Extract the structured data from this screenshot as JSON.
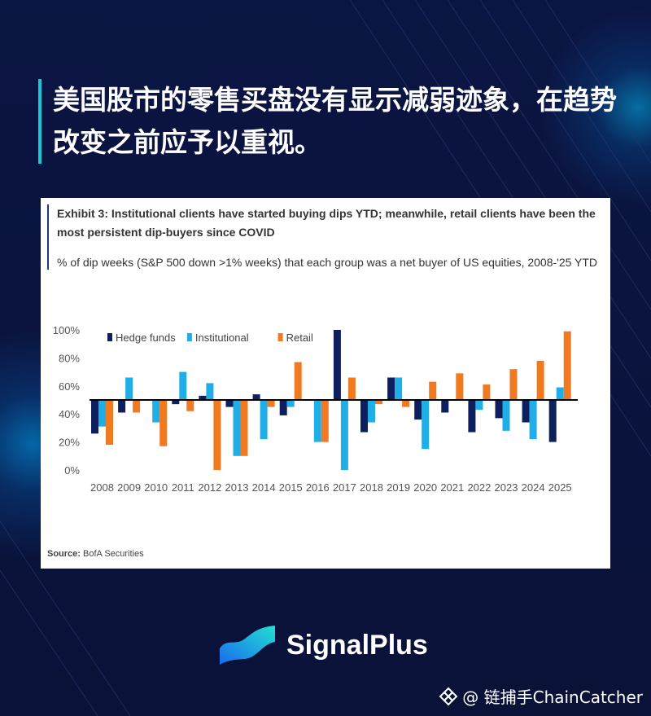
{
  "headline": "美国股市的零售买盘没有显示减弱迹象，在趋势改变之前应予以重视。",
  "exhibit": {
    "title": "Exhibit 3: Institutional clients have started buying dips YTD; meanwhile, retail clients have been the most persistent dip-buyers since COVID",
    "subtitle": "% of dip weeks (S&P 500 down >1% weeks) that each group was a net buyer of US equities, 2008-'25 YTD",
    "source_label": "Source:",
    "source_text": " BofA Securities"
  },
  "chart_data": {
    "type": "bar",
    "categories": [
      "2008",
      "2009",
      "2010",
      "2011",
      "2012",
      "2013",
      "2014",
      "2015",
      "2016",
      "2017",
      "2018",
      "2019",
      "2020",
      "2021",
      "2022",
      "2023",
      "2024",
      "2025"
    ],
    "series": [
      {
        "name": "Hedge funds",
        "color": "#0d1f5c",
        "values": [
          26,
          41,
          null,
          47,
          53,
          45,
          54,
          39,
          null,
          100,
          27,
          66,
          36,
          41,
          27,
          37,
          34,
          20
        ]
      },
      {
        "name": "Institutional",
        "color": "#21aee6",
        "values": [
          31,
          66,
          34,
          70,
          62,
          10,
          22,
          45,
          20,
          0,
          34,
          66,
          15,
          null,
          43,
          28,
          22,
          59
        ]
      },
      {
        "name": "Retail",
        "color": "#f07a22",
        "values": [
          18,
          41,
          17,
          42,
          0,
          10,
          45,
          77,
          20,
          66,
          47,
          45,
          63,
          69,
          61,
          72,
          78,
          99
        ]
      }
    ],
    "yticks": [
      "100%",
      "80%",
      "60%",
      "40%",
      "20%",
      "0%"
    ],
    "ylim": [
      0,
      100
    ],
    "baseline": 50
  },
  "brand": {
    "name": "SignalPlus",
    "accent": "#19c6d6"
  },
  "watermark": "@ 链捕手ChainCatcher"
}
